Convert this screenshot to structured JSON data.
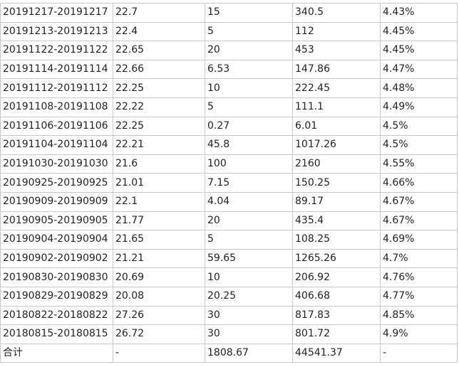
{
  "table": {
    "rows": [
      [
        "20191217-20191217",
        "22.7",
        "15",
        "340.5",
        "4.43%"
      ],
      [
        "20191213-20191213",
        "22.4",
        "5",
        "112",
        "4.45%"
      ],
      [
        "20191122-20191122",
        "22.65",
        "20",
        "453",
        "4.45%"
      ],
      [
        "20191114-20191114",
        "22.66",
        "6.53",
        "147.86",
        "4.47%"
      ],
      [
        "20191112-20191112",
        "22.25",
        "10",
        "222.45",
        "4.48%"
      ],
      [
        "20191108-20191108",
        "22.22",
        "5",
        "111.1",
        "4.49%"
      ],
      [
        "20191106-20191106",
        "22.25",
        "0.27",
        "6.01",
        "4.5%"
      ],
      [
        "20191104-20191104",
        "22.21",
        "45.8",
        "1017.26",
        "4.5%"
      ],
      [
        "20191030-20191030",
        "21.6",
        "100",
        "2160",
        "4.55%"
      ],
      [
        "20190925-20190925",
        "21.01",
        "7.15",
        "150.25",
        "4.66%"
      ],
      [
        "20190909-20190909",
        "22.1",
        "4.04",
        "89.17",
        "4.67%"
      ],
      [
        "20190905-20190905",
        "21.77",
        "20",
        "435.4",
        "4.67%"
      ],
      [
        "20190904-20190904",
        "21.65",
        "5",
        "108.25",
        "4.69%"
      ],
      [
        "20190902-20190902",
        "21.21",
        "59.65",
        "1265.26",
        "4.7%"
      ],
      [
        "20190830-20190830",
        "20.69",
        "10",
        "206.92",
        "4.76%"
      ],
      [
        "20190829-20190829",
        "20.08",
        "20.25",
        "406.68",
        "4.77%"
      ],
      [
        "20180822-20180822",
        "27.26",
        "30",
        "817.83",
        "4.85%"
      ],
      [
        "20180815-20180815",
        "26.72",
        "30",
        "801.72",
        "4.9%"
      ],
      [
        "合计",
        "-",
        "1808.67",
        "44541.37",
        "-"
      ]
    ]
  }
}
